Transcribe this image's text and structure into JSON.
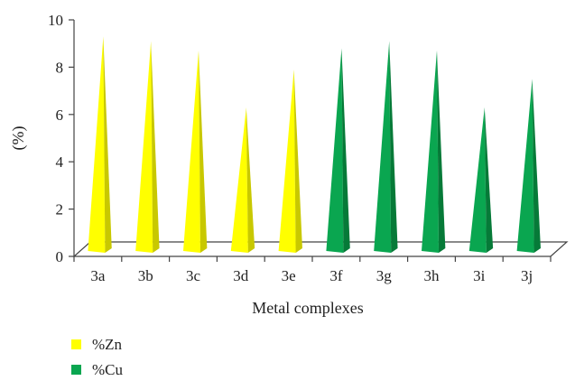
{
  "chart_data": {
    "type": "bar",
    "style": "3d-cone",
    "categories": [
      "3a",
      "3b",
      "3c",
      "3d",
      "3e",
      "3f",
      "3g",
      "3h",
      "3i",
      "3j"
    ],
    "series": [
      {
        "name": "%Zn",
        "color": "#ffff00",
        "shade": "#c8c800",
        "values": [
          9.3,
          9.1,
          8.7,
          6.3,
          7.9,
          null,
          null,
          null,
          null,
          null
        ]
      },
      {
        "name": "%Cu",
        "color": "#0aa650",
        "shade": "#067a38",
        "values": [
          null,
          null,
          null,
          null,
          null,
          8.8,
          9.1,
          8.7,
          6.3,
          7.5
        ]
      }
    ],
    "title": "",
    "xlabel": "Metal complexes",
    "ylabel": "(%)",
    "ylim": [
      0,
      10
    ],
    "yticks": [
      0,
      2,
      4,
      6,
      8,
      10
    ],
    "grid": false,
    "legend": "bottom-left"
  }
}
